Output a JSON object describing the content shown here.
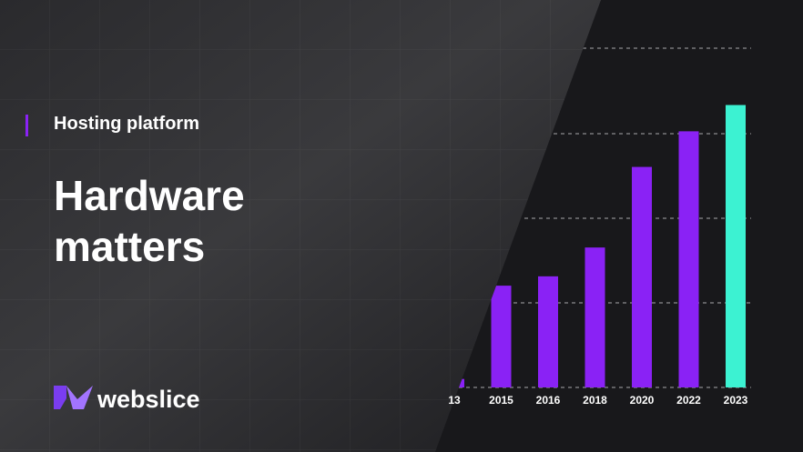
{
  "eyebrow": "Hosting platform",
  "headline": "Hardware matters",
  "brand": "webslice",
  "chart_data": {
    "type": "bar",
    "categories": [
      "13",
      "2015",
      "2016",
      "2018",
      "2020",
      "2022",
      "2023"
    ],
    "values": [
      0.1,
      1.2,
      1.31,
      1.65,
      2.6,
      3.02,
      3.33
    ],
    "colors": [
      "#8a22f5",
      "#8a22f5",
      "#8a22f5",
      "#8a22f5",
      "#8a22f5",
      "#8a22f5",
      "#3cf2d2"
    ],
    "ylim": [
      0,
      4
    ]
  }
}
